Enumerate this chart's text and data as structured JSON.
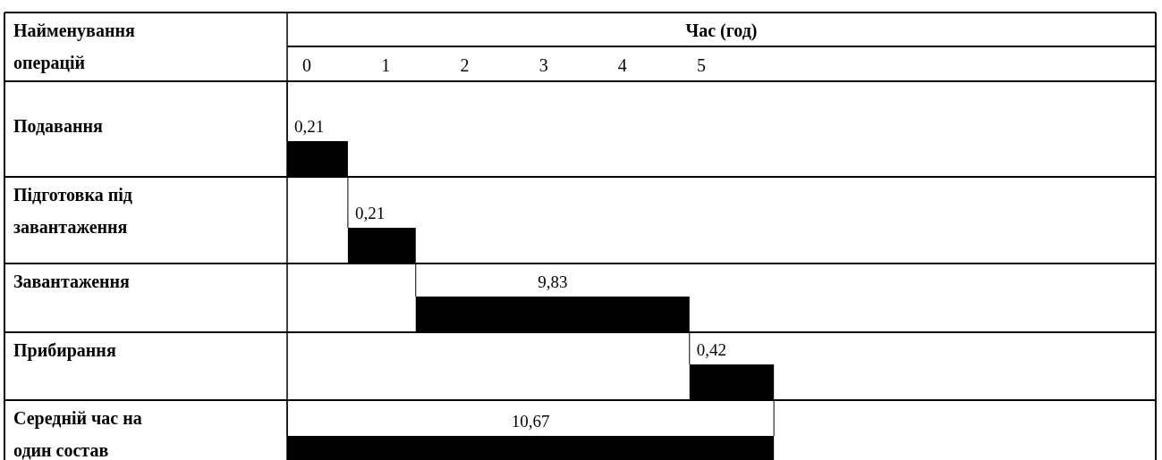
{
  "chart_data": {
    "type": "bar",
    "orientation": "horizontal",
    "xlabel": "Час (год)",
    "ylabel": "Найменування операцій",
    "categories": [
      "Подавання",
      "Підготовка під завантаження",
      "Завантаження",
      "Прибирання",
      "Середній час на один состав"
    ],
    "base": [
      -0.25,
      0.52,
      1.38,
      4.85,
      -0.25
    ],
    "values": [
      0.77,
      0.86,
      3.47,
      1.07,
      6.17
    ],
    "annotations": [
      {
        "text": "0,21",
        "x": -0.25,
        "y": "Подавання"
      },
      {
        "text": "0,21",
        "x": 0.52,
        "y": "Підготовка під завантаження"
      },
      "9,83",
      {
        "text": "0,42",
        "x": 4.85,
        "y": "Прибирання"
      },
      "10,67"
    ],
    "color": "#000000",
    "xlim": [
      -0.25,
      10.76
    ],
    "xticks": [
      0,
      1,
      2,
      3,
      4,
      5
    ]
  }
}
